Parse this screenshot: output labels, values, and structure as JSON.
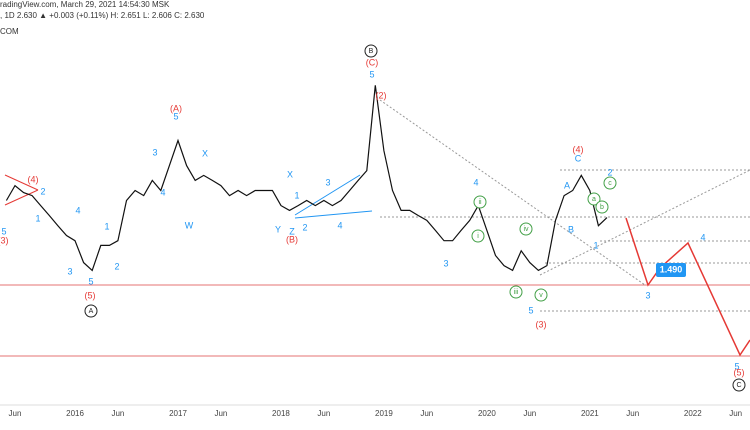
{
  "header": {
    "source": "radingView.com, March 29, 2021 14:54:30 MSK",
    "quote": ", 1D 2.630 ▲ +0.003 (+0.11%) H: 2.651 L: 2.606 C: 2.630",
    "symbol": "COM"
  },
  "price_label": "1.490",
  "chart_data": {
    "type": "line",
    "log_scale": true,
    "ylim": [
      0.37,
      22
    ],
    "color": "#111",
    "categories": [
      null,
      "Jun",
      null,
      null,
      null,
      null,
      null,
      null,
      "2016",
      null,
      null,
      null,
      null,
      "Jun",
      null,
      null,
      null,
      null,
      null,
      null,
      "2017",
      null,
      null,
      null,
      null,
      "Jun",
      null,
      null,
      null,
      null,
      null,
      null,
      "2018",
      null,
      null,
      null,
      null,
      "Jun",
      null,
      null,
      null,
      null,
      null,
      null,
      "2019",
      null,
      null,
      null,
      null,
      "Jun",
      null,
      null,
      null,
      null,
      null,
      null,
      "2020",
      null,
      null,
      null,
      null,
      "Jun",
      null,
      null,
      null,
      null,
      null,
      null,
      "2021",
      null,
      null,
      null,
      null,
      "Jun",
      null,
      null,
      null,
      null,
      null,
      null,
      "2022",
      null,
      null,
      null,
      null,
      "Jun"
    ],
    "values": [
      3.16,
      3.71,
      3.44,
      3.33,
      2.99,
      2.69,
      2.41,
      2.17,
      2.05,
      1.62,
      1.49,
      1.95,
      1.95,
      2.05,
      3.16,
      3.52,
      3.33,
      3.92,
      3.52,
      4.6,
      6.02,
      4.6,
      3.92,
      4.14,
      3.92,
      3.71,
      3.33,
      3.52,
      3.33,
      3.52,
      3.52,
      3.52,
      2.99,
      2.84,
      2.99,
      3.16,
      2.99,
      3.16,
      2.99,
      3.16,
      3.52,
      3.92,
      4.36,
      10.9,
      5.4,
      3.52,
      2.84,
      2.84,
      2.69,
      2.55,
      2.29,
      2.05,
      2.05,
      2.29,
      2.55,
      2.99,
      2.29,
      1.75,
      1.57,
      1.49,
      1.84,
      1.62,
      1.49,
      1.57,
      2.55,
      3.33,
      3.52,
      4.14,
      3.52,
      2.41,
      2.63,
      null,
      null,
      null,
      null,
      null,
      null,
      null,
      null,
      null,
      null,
      null,
      null,
      null,
      null,
      null
    ]
  },
  "annotations": [
    "(4)",
    "2",
    "1",
    "5",
    "(3)",
    "4",
    "3",
    "5",
    "(5)",
    "A",
    "2",
    "1",
    "3",
    "(A)",
    "5",
    "4",
    "X",
    "W",
    "X",
    "1",
    "3",
    "Y",
    "Z",
    "(B)",
    "2",
    "4",
    "B",
    "(C)",
    "5",
    "(2)",
    "4",
    "ii",
    "i",
    "iv",
    "iii",
    "v",
    "3",
    "5",
    "(3)",
    "(4)",
    "C",
    "A",
    "B",
    "2",
    "c",
    "a",
    "b",
    "1",
    "3",
    "4",
    "5",
    "(5)",
    "C"
  ]
}
